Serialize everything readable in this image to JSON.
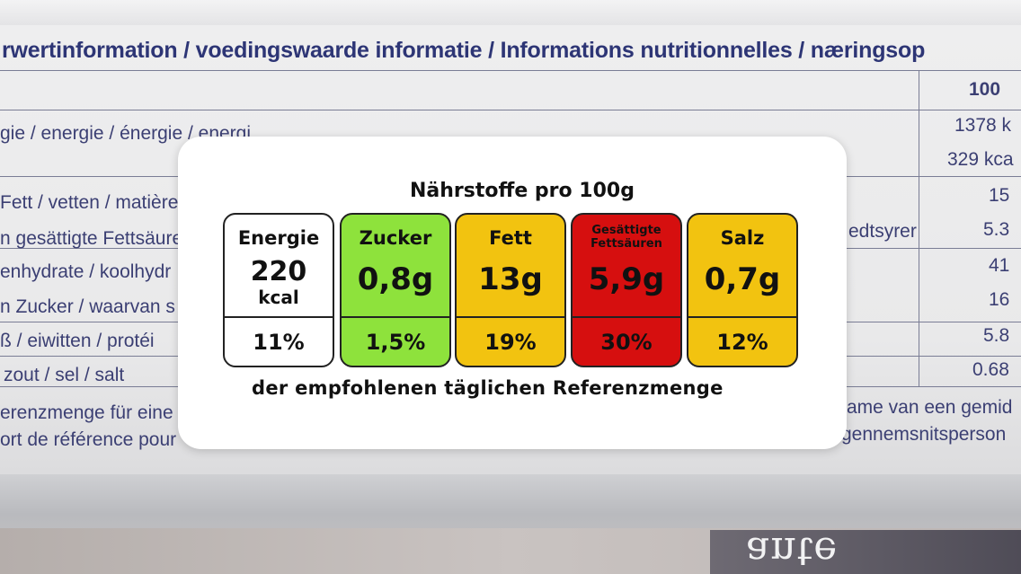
{
  "background": {
    "heading": "rwertinformation / voedingswaarde informatie / Informations nutritionnelles / næringsop",
    "per_100": "100",
    "rows": [
      {
        "label": "gie / energie / énergie / energi",
        "value": "1378 k"
      },
      {
        "label": "",
        "value": "329 kca"
      },
      {
        "label": "Fett / vetten / matières g",
        "value": "15"
      },
      {
        "label": "n gesättigte Fettsäuren",
        "side": "edtsyrer",
        "value": "5.3"
      },
      {
        "label": "enhydrate / koolhydr",
        "value": "41"
      },
      {
        "label": "n Zucker / waarvan s",
        "value": "16"
      },
      {
        "label": "ß / eiwitten / protéi",
        "value": "5.8"
      },
      {
        "label": "zout / sel / salt",
        "value": "0.68"
      }
    ],
    "footnote_left_1": "erenzmenge für eine",
    "footnote_left_2": "ort de référence pour",
    "footnote_right_1": "ame van een gemid",
    "footnote_right_2": "gennemsnitsperson",
    "package_script": "ante"
  },
  "label": {
    "title": "Nährstoffe pro 100g",
    "footer": "der empfohlenen täglichen Referenzmenge",
    "colors": {
      "neutral": "#ffffff",
      "green": "#8ee23c",
      "amber": "#f2c310",
      "red": "#d60f0f"
    },
    "energy": {
      "name": "Energie",
      "value": "220",
      "unit": "kcal",
      "percent": "11%"
    },
    "nutrients": [
      {
        "name": "Zucker",
        "amount": "0,8g",
        "percent": "1,5%",
        "color": "#8ee23c"
      },
      {
        "name": "Fett",
        "amount": "13g",
        "percent": "19%",
        "color": "#f2c310"
      },
      {
        "name": "Gesättigte Fettsäuren",
        "amount": "5,9g",
        "percent": "30%",
        "color": "#d60f0f"
      },
      {
        "name": "Salz",
        "amount": "0,7g",
        "percent": "12%",
        "color": "#f2c310"
      }
    ]
  }
}
